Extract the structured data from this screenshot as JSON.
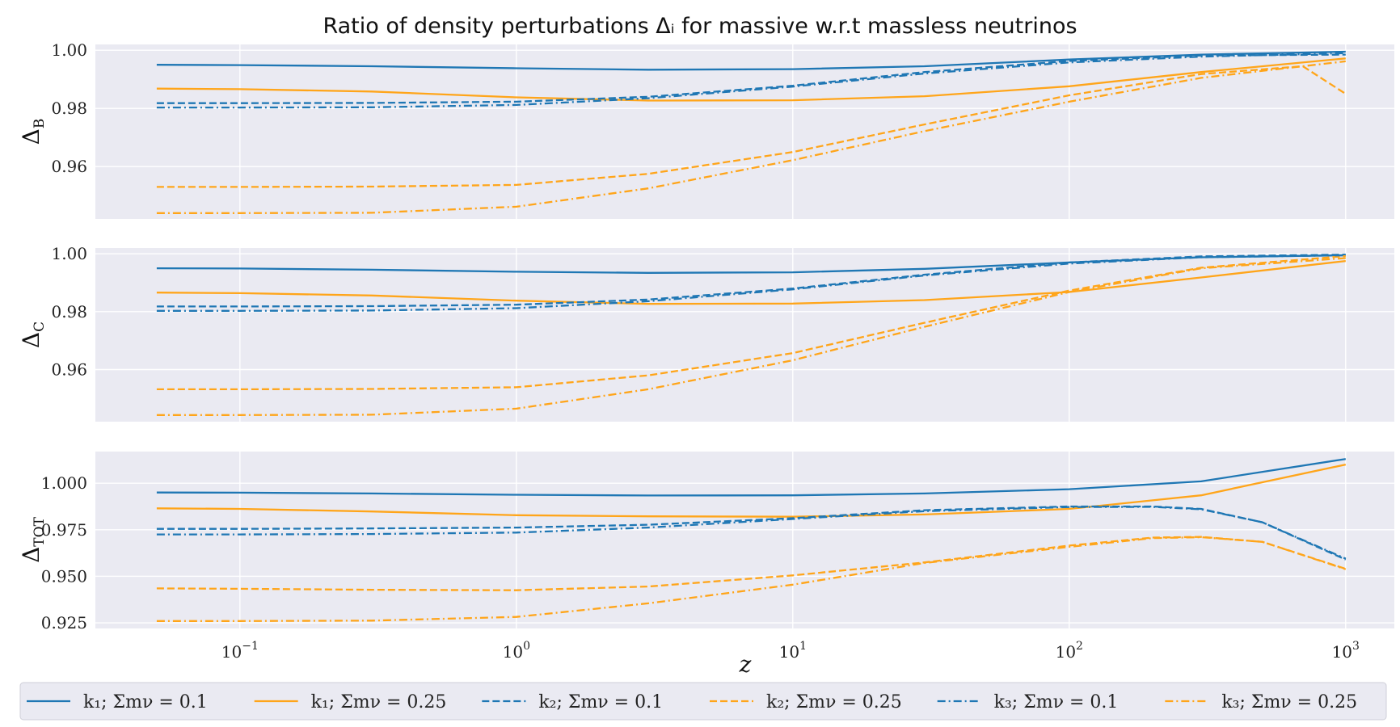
{
  "chart_data": {
    "type": "line",
    "title": "Ratio of density perturbations Δᵢ for massive w.r.t massless neutrinos",
    "xlabel": "z",
    "xscale": "log",
    "xlim": [
      0.03,
      1500
    ],
    "xticks": [
      {
        "value": 0.1,
        "base": "10",
        "exp": "−1"
      },
      {
        "value": 1,
        "base": "10",
        "exp": "0"
      },
      {
        "value": 10,
        "base": "10",
        "exp": "1"
      },
      {
        "value": 100,
        "base": "10",
        "exp": "2"
      },
      {
        "value": 1000,
        "base": "10",
        "exp": "3"
      }
    ],
    "colors": {
      "blue": "#1f77b4",
      "orange": "#ffa51a"
    },
    "legend": {
      "placement": "bottom",
      "entries": [
        {
          "label": "k₁; Σmν = 0.1",
          "color": "blue",
          "dash": "solid"
        },
        {
          "label": "k₁; Σmν = 0.25",
          "color": "orange",
          "dash": "solid"
        },
        {
          "label": "k₂; Σmν = 0.1",
          "color": "blue",
          "dash": "dashed"
        },
        {
          "label": "k₂; Σmν = 0.25",
          "color": "orange",
          "dash": "dashed"
        },
        {
          "label": "k₃; Σmν = 0.1",
          "color": "blue",
          "dash": "dashdot"
        },
        {
          "label": "k₃; Σmν = 0.25",
          "color": "orange",
          "dash": "dashdot"
        }
      ]
    },
    "panels": [
      {
        "name": "baryons",
        "ylabel": "Δ",
        "ylabel_sub": "B",
        "ylim": [
          0.942,
          1.002
        ],
        "yticks": [
          {
            "value": 0.96,
            "label": "0.96"
          },
          {
            "value": 0.98,
            "label": "0.98"
          },
          {
            "value": 1.0,
            "label": "1.00"
          }
        ],
        "series": [
          {
            "color": "blue",
            "dash": "solid",
            "x": [
              0.05,
              0.1,
              0.3,
              1,
              3,
              10,
              30,
              100,
              300,
              1000
            ],
            "y": [
              0.995,
              0.9949,
              0.9945,
              0.9938,
              0.9933,
              0.9935,
              0.9945,
              0.9968,
              0.9985,
              0.9995
            ]
          },
          {
            "color": "orange",
            "dash": "solid",
            "x": [
              0.05,
              0.1,
              0.3,
              1,
              3,
              10,
              30,
              100,
              300,
              1000
            ],
            "y": [
              0.9868,
              0.9866,
              0.9858,
              0.9838,
              0.9827,
              0.9828,
              0.9842,
              0.9876,
              0.9925,
              0.9972
            ]
          },
          {
            "color": "blue",
            "dash": "dashed",
            "x": [
              0.05,
              0.1,
              0.3,
              1,
              3,
              10,
              30,
              100,
              300,
              1000
            ],
            "y": [
              0.9818,
              0.9818,
              0.9819,
              0.9823,
              0.984,
              0.9878,
              0.9925,
              0.9963,
              0.9982,
              0.9985
            ]
          },
          {
            "color": "orange",
            "dash": "dashed",
            "x": [
              0.05,
              0.1,
              0.3,
              1,
              3,
              10,
              30,
              100,
              300,
              700,
              1000
            ],
            "y": [
              0.953,
              0.953,
              0.9531,
              0.9537,
              0.9575,
              0.965,
              0.9745,
              0.9845,
              0.9918,
              0.9945,
              0.985
            ]
          },
          {
            "color": "blue",
            "dash": "dashdot",
            "x": [
              0.05,
              0.1,
              0.3,
              1,
              3,
              10,
              30,
              100,
              300,
              1000
            ],
            "y": [
              0.9803,
              0.9803,
              0.9804,
              0.9812,
              0.9835,
              0.9875,
              0.992,
              0.9958,
              0.9978,
              0.999
            ]
          },
          {
            "color": "orange",
            "dash": "dashdot",
            "x": [
              0.05,
              0.1,
              0.3,
              1,
              3,
              10,
              30,
              100,
              300,
              1000
            ],
            "y": [
              0.944,
              0.944,
              0.9441,
              0.9462,
              0.9525,
              0.9622,
              0.9722,
              0.9823,
              0.9905,
              0.9962
            ]
          }
        ]
      },
      {
        "name": "cdm",
        "ylabel": "Δ",
        "ylabel_sub": "C",
        "ylim": [
          0.942,
          1.002
        ],
        "yticks": [
          {
            "value": 0.96,
            "label": "0.96"
          },
          {
            "value": 0.98,
            "label": "0.98"
          },
          {
            "value": 1.0,
            "label": "1.00"
          }
        ],
        "series": [
          {
            "color": "blue",
            "dash": "solid",
            "x": [
              0.05,
              0.1,
              0.3,
              1,
              3,
              10,
              30,
              100,
              300,
              1000
            ],
            "y": [
              0.995,
              0.9949,
              0.9945,
              0.9938,
              0.9934,
              0.9936,
              0.9948,
              0.997,
              0.9988,
              0.9995
            ]
          },
          {
            "color": "orange",
            "dash": "solid",
            "x": [
              0.05,
              0.1,
              0.3,
              1,
              3,
              10,
              30,
              100,
              300,
              1000
            ],
            "y": [
              0.9866,
              0.9864,
              0.9856,
              0.9838,
              0.9827,
              0.9828,
              0.984,
              0.9868,
              0.9918,
              0.9975
            ]
          },
          {
            "color": "blue",
            "dash": "dashed",
            "x": [
              0.05,
              0.1,
              0.3,
              1,
              3,
              10,
              30,
              100,
              300,
              1000
            ],
            "y": [
              0.9818,
              0.9818,
              0.9819,
              0.9824,
              0.9842,
              0.988,
              0.9928,
              0.997,
              0.9991,
              0.9997
            ]
          },
          {
            "color": "orange",
            "dash": "dashed",
            "x": [
              0.05,
              0.1,
              0.3,
              1,
              3,
              10,
              30,
              100,
              300,
              1000
            ],
            "y": [
              0.9532,
              0.9532,
              0.9533,
              0.9539,
              0.958,
              0.9657,
              0.9762,
              0.9873,
              0.9952,
              0.9992
            ]
          },
          {
            "color": "blue",
            "dash": "dashdot",
            "x": [
              0.05,
              0.1,
              0.3,
              1,
              3,
              10,
              30,
              100,
              300,
              1000
            ],
            "y": [
              0.9803,
              0.9803,
              0.9804,
              0.9812,
              0.9836,
              0.9877,
              0.9925,
              0.9966,
              0.9988,
              0.9995
            ]
          },
          {
            "color": "orange",
            "dash": "dashdot",
            "x": [
              0.05,
              0.1,
              0.3,
              1,
              3,
              10,
              30,
              100,
              300,
              1000
            ],
            "y": [
              0.9443,
              0.9443,
              0.9444,
              0.9465,
              0.9532,
              0.9632,
              0.9748,
              0.9868,
              0.995,
              0.9985
            ]
          }
        ]
      },
      {
        "name": "total",
        "ylabel": "Δ",
        "ylabel_sub": "TOT",
        "ylim": [
          0.922,
          1.017
        ],
        "yticks": [
          {
            "value": 0.925,
            "label": "0.925"
          },
          {
            "value": 0.95,
            "label": "0.950"
          },
          {
            "value": 0.975,
            "label": "0.975"
          },
          {
            "value": 1.0,
            "label": "1.000"
          }
        ],
        "series": [
          {
            "color": "blue",
            "dash": "solid",
            "x": [
              0.05,
              0.1,
              0.3,
              1,
              3,
              10,
              30,
              100,
              300,
              1000
            ],
            "y": [
              0.995,
              0.9949,
              0.9945,
              0.9938,
              0.9934,
              0.9935,
              0.9945,
              0.9968,
              1.001,
              1.013
            ]
          },
          {
            "color": "orange",
            "dash": "solid",
            "x": [
              0.05,
              0.1,
              0.3,
              1,
              3,
              10,
              30,
              100,
              300,
              1000
            ],
            "y": [
              0.9865,
              0.9862,
              0.9848,
              0.9828,
              0.9822,
              0.982,
              0.9832,
              0.9862,
              0.9935,
              1.01
            ]
          },
          {
            "color": "blue",
            "dash": "dashed",
            "x": [
              0.05,
              0.1,
              0.3,
              1,
              3,
              10,
              30,
              100,
              200,
              300,
              500,
              1000
            ],
            "y": [
              0.9755,
              0.9755,
              0.9757,
              0.9762,
              0.9777,
              0.9812,
              0.9855,
              0.9875,
              0.9875,
              0.9862,
              0.979,
              0.959
            ]
          },
          {
            "color": "orange",
            "dash": "dashed",
            "x": [
              0.05,
              0.1,
              0.3,
              1,
              3,
              10,
              30,
              100,
              200,
              300,
              500,
              1000
            ],
            "y": [
              0.9435,
              0.9433,
              0.9428,
              0.9425,
              0.9445,
              0.9505,
              0.9575,
              0.9665,
              0.9708,
              0.9712,
              0.9685,
              0.954
            ]
          },
          {
            "color": "blue",
            "dash": "dashdot",
            "x": [
              0.05,
              0.1,
              0.3,
              1,
              3,
              10,
              30,
              100,
              200,
              300,
              500,
              1000
            ],
            "y": [
              0.9725,
              0.9725,
              0.9727,
              0.9735,
              0.9762,
              0.9808,
              0.985,
              0.9872,
              0.9873,
              0.986,
              0.979,
              0.9595
            ]
          },
          {
            "color": "orange",
            "dash": "dashdot",
            "x": [
              0.05,
              0.1,
              0.3,
              1,
              3,
              10,
              30,
              100,
              200,
              300,
              500,
              1000
            ],
            "y": [
              0.926,
              0.926,
              0.9262,
              0.9282,
              0.9355,
              0.9455,
              0.9572,
              0.9658,
              0.9705,
              0.971,
              0.9685,
              0.9538
            ]
          }
        ]
      }
    ]
  }
}
